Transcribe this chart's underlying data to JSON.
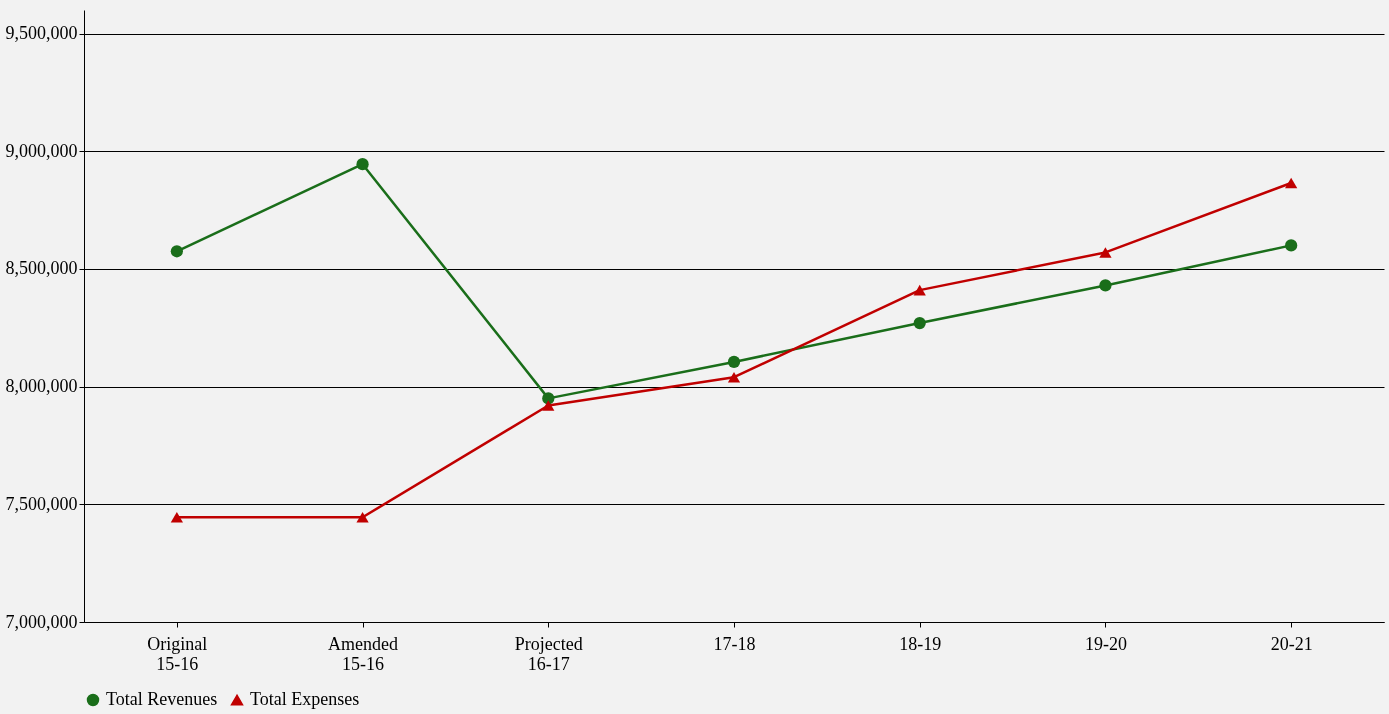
{
  "chart_data": {
    "type": "line",
    "categories": [
      "Original\n15-16",
      "Amended\n15-16",
      "Projected\n16-17",
      "17-18",
      "18-19",
      "19-20",
      "20-21"
    ],
    "series": [
      {
        "name": "Total Revenues",
        "color": "#1a6e1a",
        "marker": "circle",
        "values": [
          8575000,
          8945000,
          7950000,
          8105000,
          8270000,
          8430000,
          8600000
        ]
      },
      {
        "name": "Total Expenses",
        "color": "#c00000",
        "marker": "triangle",
        "values": [
          7445000,
          7445000,
          7920000,
          8040000,
          8410000,
          8570000,
          8865000
        ]
      }
    ],
    "ylim": [
      7000000,
      9600000
    ],
    "yticks": [
      {
        "value": 7000000,
        "label": "7,000,000"
      },
      {
        "value": 7500000,
        "label": "7,500,000"
      },
      {
        "value": 8000000,
        "label": "8,000,000"
      },
      {
        "value": 8500000,
        "label": "8,500,000"
      },
      {
        "value": 9000000,
        "label": "9,000,000"
      },
      {
        "value": 9500000,
        "label": "9,500,000"
      }
    ],
    "grid": "y",
    "legend": "bottom",
    "line_style": "solid"
  }
}
